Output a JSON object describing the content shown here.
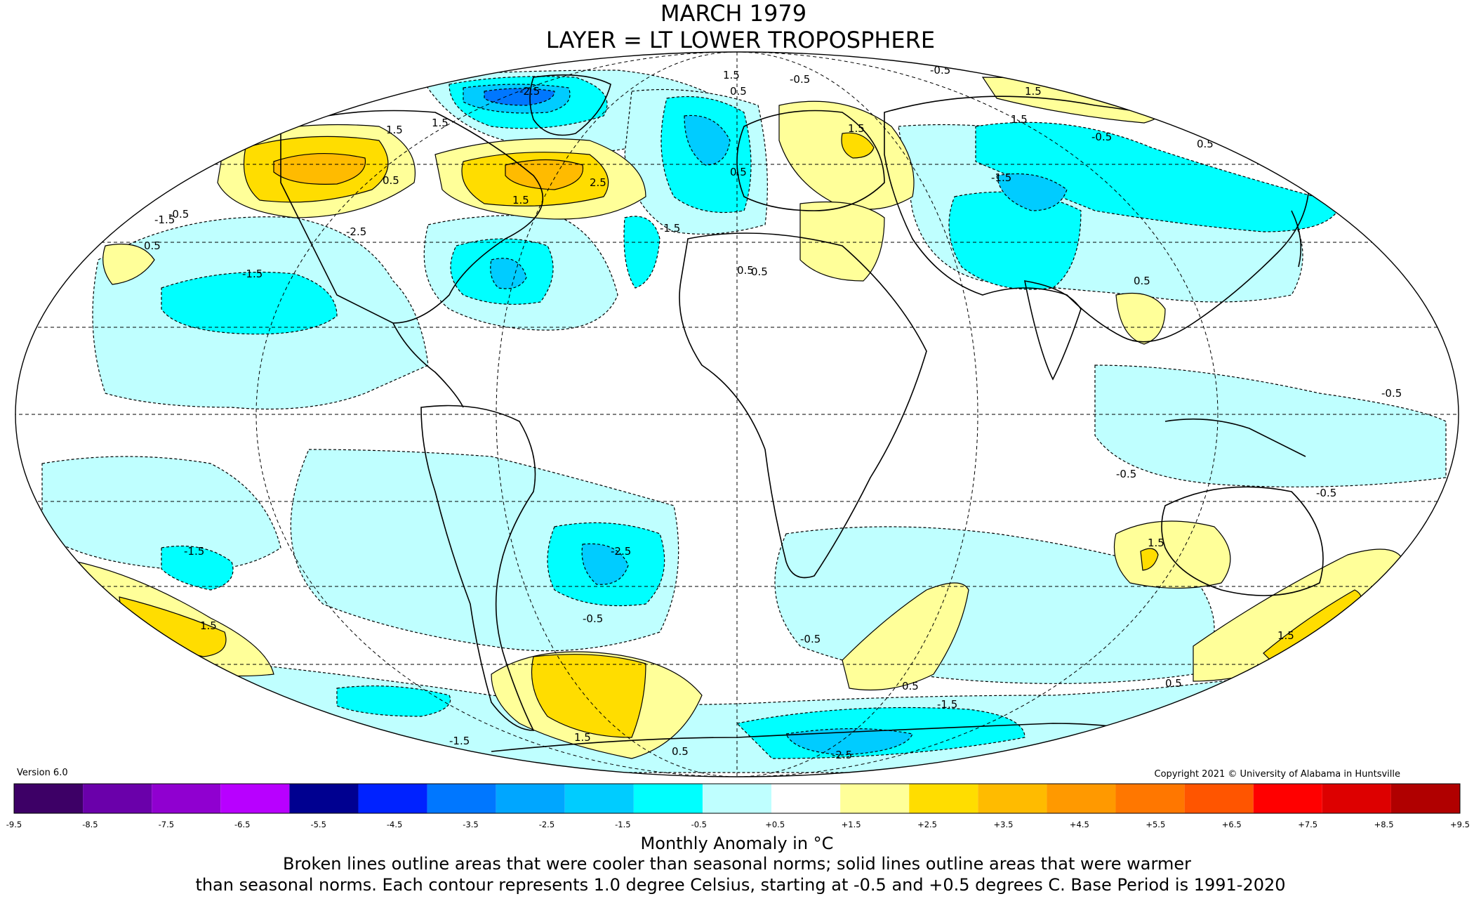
{
  "title": {
    "line1": "MARCH 1979",
    "line2": "LAYER = LT LOWER TROPOSPHERE"
  },
  "version": "Version 6.0",
  "copyright": "Copyright 2021 © University of Alabama in Huntsville",
  "colorbar": {
    "ticks": [
      "-9.5",
      "-8.5",
      "-7.5",
      "-6.5",
      "-5.5",
      "-4.5",
      "-3.5",
      "-2.5",
      "-1.5",
      "-0.5",
      "+0.5",
      "+1.5",
      "+2.5",
      "+3.5",
      "+4.5",
      "+5.5",
      "+6.5",
      "+7.5",
      "+8.5",
      "+9.5"
    ],
    "colors": [
      "#3d0066",
      "#6a00aa",
      "#9000d0",
      "#b800ff",
      "#000090",
      "#0022ff",
      "#0077ff",
      "#00a6ff",
      "#00ccff",
      "#00ffff",
      "#bfffff",
      "#ffffff",
      "#ffff99",
      "#ffdd00",
      "#ffbb00",
      "#ff9900",
      "#ff7700",
      "#ff5500",
      "#ff0000",
      "#dd0000",
      "#b00000"
    ],
    "title": "Monthly Anomaly in °C"
  },
  "caption": {
    "line1": "Broken lines outline areas that were cooler than seasonal norms; solid lines outline areas that were warmer",
    "line2": "than seasonal norms. Each contour represents 1.0 degree Celsius, starting at -0.5 and +0.5 degrees C. Base Period is 1991-2020"
  },
  "map": {
    "projection": "mollweide",
    "region_colors": {
      "cool_05": "#bfffff",
      "cool_15": "#00ffff",
      "cool_25": "#00ccff",
      "cool_35": "#00a6ff",
      "warm_05": "#ffff99",
      "warm_15": "#ffdd00",
      "warm_25": "#ffbb00"
    },
    "contour_labels": [
      "-0.5",
      "-1.5",
      "-2.5",
      "0.5",
      "1.5",
      "2.5"
    ]
  }
}
